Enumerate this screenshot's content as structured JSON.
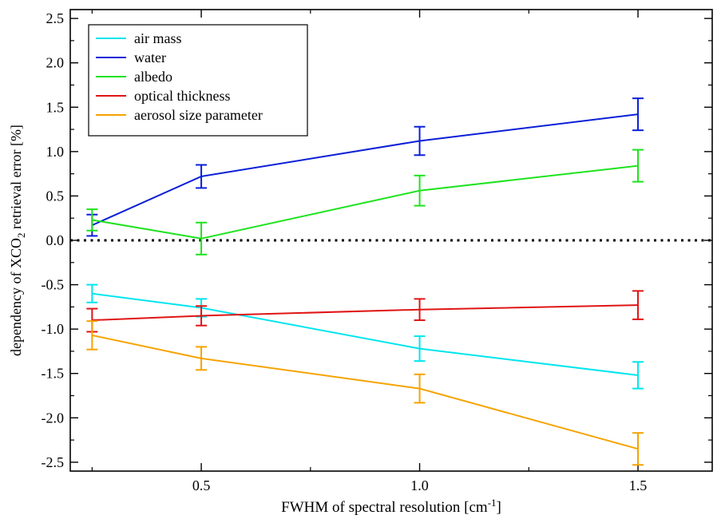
{
  "chart_data": {
    "type": "line",
    "xlabel": "FWHM of spectral resolution [cm",
    "xlabel_sup": "-1",
    "xlabel_end": "]",
    "ylabel_pre": "dependency of XCO",
    "ylabel_sub": "2",
    "ylabel_post": " retrieval error [%]",
    "xlim": [
      0.2,
      1.67
    ],
    "ylim": [
      -2.6,
      2.6
    ],
    "x_ticks": [
      0.5,
      1.0,
      1.5
    ],
    "x_tick_labels": [
      "0.5",
      "1.0",
      "1.5"
    ],
    "y_ticks": [
      2.5,
      2.0,
      1.5,
      1.0,
      0.5,
      0.0,
      -0.5,
      -1.0,
      -1.5,
      -2.0,
      -2.5
    ],
    "y_tick_labels": [
      "2.5",
      "2.0",
      "1.5",
      "1.0",
      "0.5",
      "0.0",
      "-0.5",
      "-1.0",
      "-1.5",
      "-2.0",
      "-2.5"
    ],
    "zero_line": true,
    "grid": false,
    "legend_position": "top-left",
    "x": [
      0.25,
      0.5,
      1.0,
      1.5
    ],
    "series": [
      {
        "name": "air mass",
        "color": "#00e5ee",
        "values": [
          -0.6,
          -0.76,
          -1.22,
          -1.52
        ],
        "errors": [
          0.1,
          0.1,
          0.14,
          0.15
        ]
      },
      {
        "name": "water",
        "color": "#0a1fd8",
        "values": [
          0.17,
          0.72,
          1.12,
          1.42
        ],
        "errors": [
          0.12,
          0.13,
          0.16,
          0.18
        ]
      },
      {
        "name": "albedo",
        "color": "#1ee31e",
        "values": [
          0.23,
          0.02,
          0.56,
          0.84
        ],
        "errors": [
          0.12,
          0.18,
          0.17,
          0.18
        ]
      },
      {
        "name": "optical thickness",
        "color": "#e01515",
        "values": [
          -0.9,
          -0.85,
          -0.78,
          -0.73
        ],
        "errors": [
          0.13,
          0.11,
          0.12,
          0.16
        ]
      },
      {
        "name": "aerosol size parameter",
        "color": "#f5a300",
        "values": [
          -1.07,
          -1.33,
          -1.67,
          -2.35
        ],
        "errors": [
          0.16,
          0.13,
          0.16,
          0.18
        ]
      }
    ]
  }
}
